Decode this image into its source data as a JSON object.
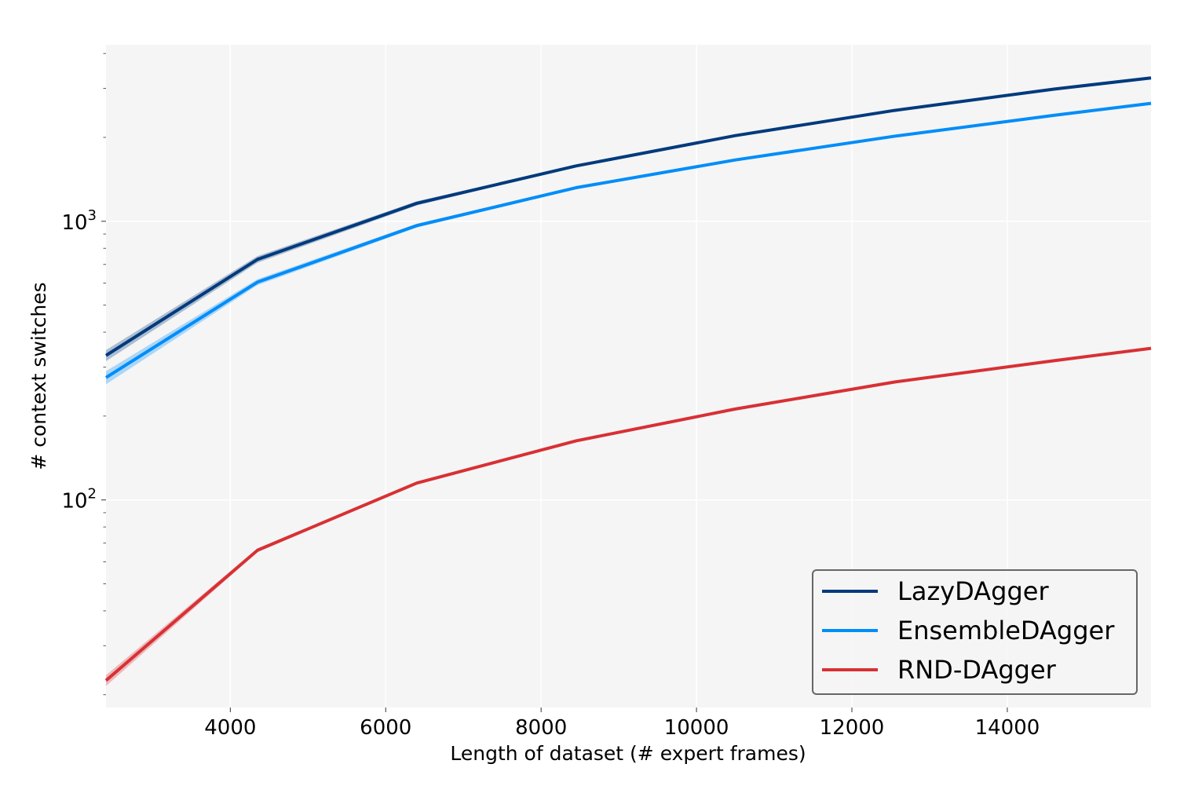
{
  "chart_data": {
    "type": "line",
    "xlabel": "Length of dataset (# expert frames)",
    "ylabel": "# context switches",
    "xlim": [
      2400,
      15850
    ],
    "ylim": [
      18,
      4300
    ],
    "yscale": "log",
    "grid": true,
    "legend_position": "bottom-right",
    "x_ticks": [
      {
        "value": 4000,
        "label": "4000"
      },
      {
        "value": 6000,
        "label": "6000"
      },
      {
        "value": 8000,
        "label": "8000"
      },
      {
        "value": 10000,
        "label": "10000"
      },
      {
        "value": 12000,
        "label": "12000"
      },
      {
        "value": 14000,
        "label": "14000"
      }
    ],
    "y_ticks": [
      {
        "value": 100,
        "base": "10",
        "exp": "2"
      },
      {
        "value": 1000,
        "base": "10",
        "exp": "3"
      }
    ],
    "series": [
      {
        "name": "LazyDAgger",
        "color": "#003a7d",
        "x": [
          2400,
          4350,
          6400,
          8450,
          10500,
          12550,
          14600,
          15850
        ],
        "values": [
          330,
          730,
          1160,
          1580,
          2030,
          2500,
          2980,
          3270
        ],
        "lower": [
          315,
          710,
          1140,
          1565,
          2015,
          2485,
          2965,
          3255
        ],
        "upper": [
          345,
          750,
          1180,
          1595,
          2045,
          2515,
          2995,
          3285
        ]
      },
      {
        "name": "EnsembleDAgger",
        "color": "#008df9",
        "x": [
          2400,
          4350,
          6400,
          8450,
          10500,
          12550,
          14600,
          15850
        ],
        "values": [
          275,
          605,
          965,
          1320,
          1660,
          2020,
          2400,
          2650
        ],
        "lower": [
          260,
          590,
          950,
          1305,
          1645,
          2005,
          2385,
          2635
        ],
        "upper": [
          290,
          620,
          980,
          1335,
          1675,
          2035,
          2415,
          2665
        ]
      },
      {
        "name": "RND-DAgger",
        "color": "#d83034",
        "x": [
          2400,
          4350,
          6400,
          8450,
          10500,
          12550,
          14600,
          15850
        ],
        "values": [
          22.5,
          66,
          115,
          163,
          212,
          265,
          316,
          350
        ],
        "lower": [
          21.5,
          65,
          114,
          162,
          211,
          264,
          315,
          349
        ],
        "upper": [
          23.5,
          67,
          116,
          164,
          213,
          266,
          317,
          351
        ]
      }
    ]
  }
}
